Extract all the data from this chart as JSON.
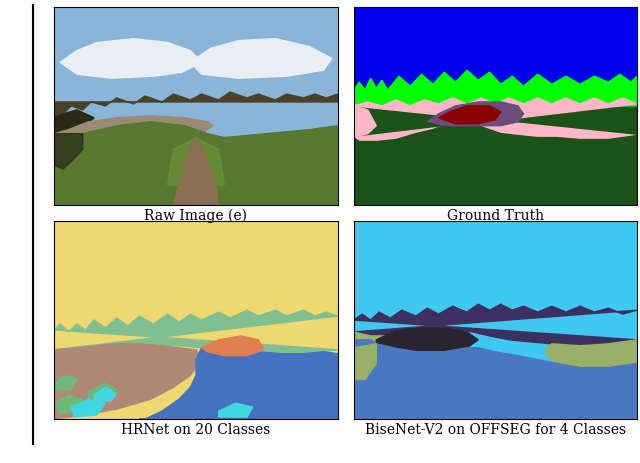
{
  "captions": [
    "Raw Image (e)",
    "Ground Truth",
    "HRNet on 20 Classes",
    "BiseNet-V2 on OFFSEG for 4 Classes"
  ],
  "fig_bg": "#ffffff",
  "caption_fontsize": 10,
  "caption_font": "DejaVu Serif",
  "gt_colors": {
    "sky": "#0000ee",
    "tree": "#00ff00",
    "pink": "#ffb6c8",
    "dark_red": "#8b0000",
    "purple": "#6b4c7a",
    "dark_green": "#1a5218"
  },
  "hrnet_colors": {
    "yellow": "#f0d870",
    "teal": "#80c090",
    "mauve": "#b08878",
    "blue": "#4472c0",
    "cyan": "#40d8e0",
    "green": "#70b878",
    "salmon": "#e08050"
  },
  "bisenet_colors": {
    "sky_blue": "#40c8f0",
    "dark_purple": "#3c3060",
    "olive": "#98b068",
    "steel_blue": "#4878c0",
    "dark_navy": "#282430"
  },
  "raw_colors": {
    "sky": "#8ab4d8",
    "cloud": "#e8eef4",
    "treeline": "#4a4228",
    "tree_dark": "#2a2818",
    "rock": "#9a8c72",
    "grass": "#587830",
    "grass_light": "#6a9838",
    "path": "#887050",
    "dirt": "#786040"
  }
}
